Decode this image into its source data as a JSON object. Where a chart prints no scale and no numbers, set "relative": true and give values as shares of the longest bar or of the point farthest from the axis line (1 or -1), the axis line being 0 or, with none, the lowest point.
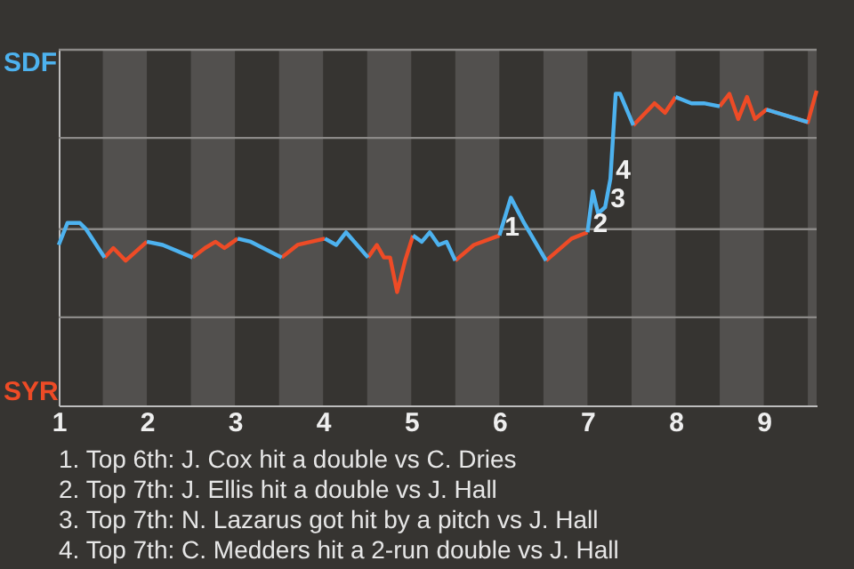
{
  "chart_data": {
    "type": "line",
    "relative": true,
    "x": [
      1,
      1.1,
      1.24,
      1.31,
      1.52,
      1.62,
      1.76,
      2,
      2.18,
      2.52,
      2.66,
      2.78,
      2.88,
      3.03,
      3.18,
      3.53,
      3.71,
      4.02,
      4.15,
      4.26,
      4.51,
      4.61,
      4.69,
      4.76,
      4.84,
      4.93,
      5.02,
      5.12,
      5.21,
      5.31,
      5.4,
      5.5,
      5.71,
      6,
      6.13,
      6.28,
      6.53,
      6.82,
      7,
      7.06,
      7.12,
      7.2,
      7.26,
      7.32,
      7.37,
      7.52,
      7.76,
      7.88,
      8,
      8.18,
      8.32,
      8.5,
      8.61,
      8.71,
      8.81,
      8.9,
      9.03,
      9.5,
      9.6
    ],
    "series": [
      {
        "name": "SDF",
        "color": "#4db2ef",
        "values": [
          0.51,
          0.58,
          0.58,
          0.56,
          0.47,
          null,
          null,
          0.52,
          0.51,
          0.47,
          null,
          null,
          null,
          0.53,
          0.52,
          0.47,
          null,
          0.53,
          0.51,
          0.55,
          0.47,
          null,
          null,
          null,
          null,
          null,
          0.54,
          0.52,
          0.55,
          0.51,
          0.52,
          0.46,
          null,
          0.54,
          0.66,
          0.58,
          0.46,
          null,
          0.55,
          0.68,
          0.61,
          0.63,
          0.72,
          0.99,
          0.99,
          0.89,
          null,
          null,
          0.98,
          0.96,
          0.96,
          0.95,
          null,
          null,
          null,
          null,
          0.94,
          0.9,
          null
        ]
      },
      {
        "name": "SYR",
        "color": "#ee4b26",
        "values": [
          null,
          null,
          null,
          null,
          0.47,
          0.5,
          0.46,
          0.52,
          null,
          0.47,
          0.5,
          0.52,
          0.5,
          0.53,
          null,
          0.47,
          0.51,
          0.53,
          null,
          null,
          0.47,
          0.51,
          0.47,
          0.47,
          0.36,
          0.46,
          0.54,
          null,
          null,
          null,
          null,
          0.46,
          0.51,
          0.54,
          null,
          null,
          0.46,
          0.53,
          0.55,
          null,
          null,
          null,
          null,
          null,
          null,
          0.89,
          0.96,
          0.93,
          0.98,
          null,
          null,
          0.95,
          0.99,
          0.91,
          0.98,
          0.91,
          0.94,
          0.9,
          1
        ]
      }
    ],
    "xlim": [
      1,
      9.6
    ],
    "xticks": [
      1,
      2,
      3,
      4,
      5,
      6,
      7,
      8,
      9
    ],
    "ref_lines": [
      {
        "axis": "y",
        "value": 0.28,
        "color": "#8c8a88"
      },
      {
        "axis": "y",
        "value": 0.56,
        "color": "#8c8a88"
      },
      {
        "axis": "y",
        "value": 0.85,
        "color": "#8c8a88"
      },
      {
        "axis": "y",
        "value": 1.13,
        "color": "#8c8a88"
      }
    ],
    "bands": [
      {
        "axis": "x",
        "from": 1.5,
        "to": 2,
        "color": "#52504e"
      },
      {
        "axis": "x",
        "from": 2.5,
        "to": 3,
        "color": "#52504e"
      },
      {
        "axis": "x",
        "from": 3.5,
        "to": 4,
        "color": "#52504e"
      },
      {
        "axis": "x",
        "from": 4.5,
        "to": 5,
        "color": "#52504e"
      },
      {
        "axis": "x",
        "from": 5.5,
        "to": 6,
        "color": "#52504e"
      },
      {
        "axis": "x",
        "from": 6.5,
        "to": 7,
        "color": "#52504e"
      },
      {
        "axis": "x",
        "from": 7.5,
        "to": 8,
        "color": "#52504e"
      },
      {
        "axis": "x",
        "from": 8.5,
        "to": 9,
        "color": "#52504e"
      },
      {
        "axis": "x",
        "from": 9.5,
        "to": 9.6,
        "color": "#52504e"
      }
    ],
    "annotations": [
      {
        "text": "1",
        "x": 6,
        "y": 0.54
      },
      {
        "text": "2",
        "x": 7,
        "y": 0.55
      },
      {
        "text": "3",
        "x": 7.2,
        "y": 0.63
      },
      {
        "text": "4",
        "x": 7.26,
        "y": 0.72
      },
      "1. Top 6th: J. Cox hit a double vs C. Dries",
      "2. Top 7th: J. Ellis hit a double vs J. Hall",
      "3. Top 7th: N. Lazarus got hit by a pitch vs J. Hall",
      "4. Top 7th: C. Medders hit a 2-run double vs J. Hall"
    ]
  }
}
